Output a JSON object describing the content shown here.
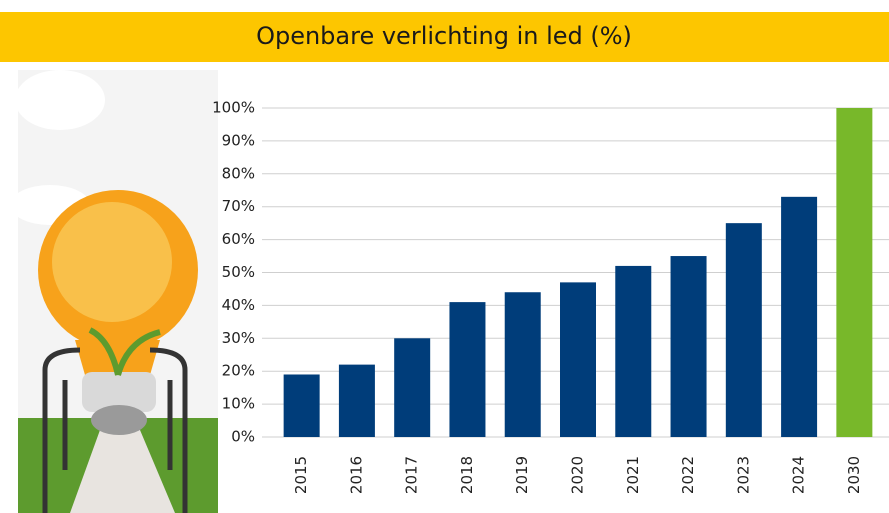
{
  "chart_data": {
    "type": "bar",
    "title": "Openbare verlichting in led (%)",
    "categories": [
      "2015",
      "2016",
      "2017",
      "2018",
      "2019",
      "2020",
      "2021",
      "2022",
      "2023",
      "2024",
      "2030"
    ],
    "values": [
      19,
      22,
      30,
      41,
      44,
      47,
      52,
      55,
      65,
      73,
      100
    ],
    "colors": [
      "#003d7a",
      "#003d7a",
      "#003d7a",
      "#003d7a",
      "#003d7a",
      "#003d7a",
      "#003d7a",
      "#003d7a",
      "#003d7a",
      "#003d7a",
      "#78b82a"
    ],
    "ylim": [
      0,
      100
    ],
    "yticks": [
      {
        "value": 0,
        "label": "0%"
      },
      {
        "value": 10,
        "label": "10%"
      },
      {
        "value": 20,
        "label": "20%"
      },
      {
        "value": 30,
        "label": "30%"
      },
      {
        "value": 40,
        "label": "40%"
      },
      {
        "value": 50,
        "label": "50%"
      },
      {
        "value": 60,
        "label": "60%"
      },
      {
        "value": 70,
        "label": "70%"
      },
      {
        "value": 80,
        "label": "80%"
      },
      {
        "value": 90,
        "label": "90%"
      },
      {
        "value": 100,
        "label": "100%"
      }
    ],
    "grid": true
  }
}
